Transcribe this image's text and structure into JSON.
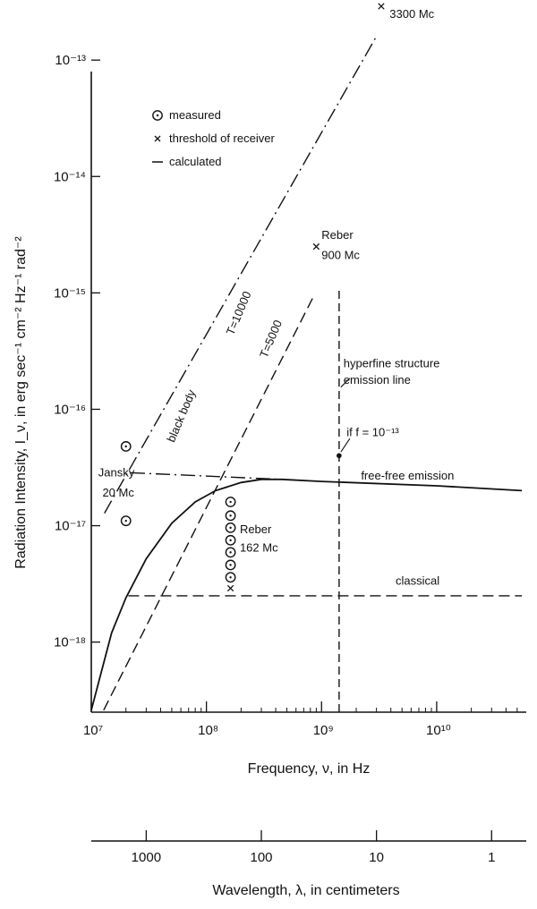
{
  "chart_data": {
    "type": "line",
    "xlabel": "Frequency, ν, in Hz",
    "ylabel": "Radiation Intensity, I_ν, in erg sec⁻¹ cm⁻² Hz⁻¹ rad⁻²",
    "xscale": "log",
    "yscale": "log",
    "xlim": [
      10000000.0,
      60000000000.0
    ],
    "ylim": [
      2.5e-19,
      2e-13
    ],
    "x_ticks": [
      {
        "value": 10000000.0,
        "label": "10⁷"
      },
      {
        "value": 100000000.0,
        "label": "10⁸"
      },
      {
        "value": 1000000000.0,
        "label": "10⁹"
      },
      {
        "value": 10000000000.0,
        "label": "10¹⁰"
      }
    ],
    "y_ticks": [
      {
        "value": 1e-13,
        "label": "10⁻¹³"
      },
      {
        "value": 1e-14,
        "label": "10⁻¹⁴"
      },
      {
        "value": 1e-15,
        "label": "10⁻¹⁵"
      },
      {
        "value": 1e-16,
        "label": "10⁻¹⁶"
      },
      {
        "value": 1e-17,
        "label": "10⁻¹⁷"
      },
      {
        "value": 1e-18,
        "label": "10⁻¹⁸"
      }
    ],
    "secondary_axis": {
      "label": "Wavelength, λ, in centimeters",
      "ticks": [
        {
          "value": 1000,
          "label": "1000"
        },
        {
          "value": 100,
          "label": "100"
        },
        {
          "value": 10,
          "label": "10"
        },
        {
          "value": 1,
          "label": "1"
        }
      ]
    },
    "legend": {
      "placement": "top-left",
      "entries": [
        {
          "symbol": "circle-dot",
          "label": "measured"
        },
        {
          "symbol": "x",
          "label": "threshold of receiver"
        },
        {
          "symbol": "dash",
          "label": "calculated"
        }
      ]
    },
    "series": [
      {
        "name": "black body T=10000",
        "style": "dash-dot",
        "x": [
          13000000.0,
          3000000000.0
        ],
        "y": [
          1.28e-17,
          1.6e-13
        ]
      },
      {
        "name": "T=5000",
        "style": "dashed",
        "x": [
          12800000.0,
          860000000.0
        ],
        "y": [
          2.6e-19,
          9.5e-16
        ]
      },
      {
        "name": "free-free emission",
        "style": "solid",
        "x": [
          10000000.0,
          15000000.0,
          20000000.0,
          30000000.0,
          50000000.0,
          80000000.0,
          120000000.0,
          200000000.0,
          300000000.0,
          450000000.0,
          1000000000.0,
          10000000000.0,
          55000000000.0
        ],
        "y": [
          2.6e-19,
          1.2e-18,
          2.4e-18,
          5.2e-18,
          1.05e-17,
          1.6e-17,
          2e-17,
          2.35e-17,
          2.5e-17,
          2.5e-17,
          2.4e-17,
          2.2e-17,
          2e-17
        ]
      },
      {
        "name": "free-free extrapolation",
        "style": "dash-dot",
        "x": [
          22000000.0,
          450000000.0
        ],
        "y": [
          2.85e-17,
          2.5e-17
        ]
      },
      {
        "name": "classical",
        "style": "dashed",
        "x": [
          21000000.0,
          55000000000.0
        ],
        "y": [
          2.5e-18,
          2.5e-18
        ]
      },
      {
        "name": "hyperfine structure emission line",
        "style": "dashed-vertical",
        "x": [
          1420000000.0,
          1420000000.0
        ],
        "y": [
          2.5e-19,
          1.05e-15
        ]
      }
    ],
    "measured_points": [
      {
        "x": 20000000.0,
        "y": 4.8e-17
      },
      {
        "x": 20000000.0,
        "y": 1.1e-17
      },
      {
        "x": 162000000.0,
        "y": 1.6e-17
      },
      {
        "x": 162000000.0,
        "y": 1.22e-17
      },
      {
        "x": 162000000.0,
        "y": 9.6e-18
      },
      {
        "x": 162000000.0,
        "y": 7.5e-18
      },
      {
        "x": 162000000.0,
        "y": 5.9e-18
      },
      {
        "x": 162000000.0,
        "y": 4.6e-18
      },
      {
        "x": 162000000.0,
        "y": 3.6e-18
      }
    ],
    "threshold_points": [
      {
        "x": 3300000000.0,
        "y": 2.9e-13
      },
      {
        "x": 900000000.0,
        "y": 2.5e-15
      },
      {
        "x": 162000000.0,
        "y": 2.9e-18
      }
    ],
    "special_points": [
      {
        "x": 1420000000.0,
        "y": 4e-17
      }
    ],
    "annotations": [
      {
        "text": "Reber",
        "x": 3900000000.0,
        "y": 3.7e-13
      },
      {
        "text": "3300 Mc",
        "x": 3900000000.0,
        "y": 2.3e-13
      },
      {
        "text": "Reber",
        "x": 1000000000.0,
        "y": 2.9e-15
      },
      {
        "text": "900 Mc",
        "x": 1000000000.0,
        "y": 1.95e-15
      },
      {
        "text": "Jansky",
        "x": 11500000.0,
        "y": 2.65e-17
      },
      {
        "text": "20 Mc",
        "x": 12500000.0,
        "y": 1.78e-17
      },
      {
        "text": "Reber",
        "x": 195000000.0,
        "y": 8.6e-18
      },
      {
        "text": "162 Mc",
        "x": 195000000.0,
        "y": 6e-18
      },
      {
        "text": "hyperfine structure",
        "x": 1550000000.0,
        "y": 2.3e-16
      },
      {
        "text": "emission line",
        "x": 1550000000.0,
        "y": 1.65e-16
      },
      {
        "text": "if f = 10⁻¹³",
        "x": 1650000000.0,
        "y": 5.9e-17
      },
      {
        "text": "free-free emission",
        "x": 2200000000.0,
        "y": 2.5e-17
      },
      {
        "text": "classical",
        "x": 4400000000.0,
        "y": 3.1e-18
      }
    ],
    "rotated_labels": [
      {
        "text": "black body",
        "x": 65000000.0,
        "y": 8.5e-17,
        "angle": -67
      },
      {
        "text": "T=10000",
        "x": 205000000.0,
        "y": 6.5e-16,
        "angle": -67
      },
      {
        "text": "T=5000",
        "x": 390000000.0,
        "y": 3.9e-16,
        "angle": -67
      }
    ]
  }
}
